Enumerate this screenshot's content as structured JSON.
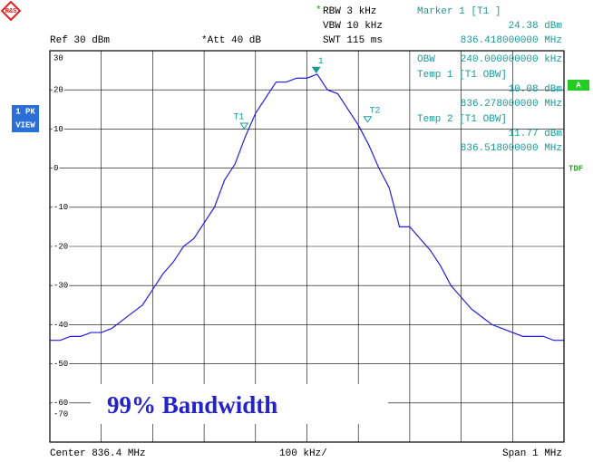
{
  "header": {
    "rbw": "RBW 3 kHz",
    "vbw": "VBW 10 kHz",
    "swt": "SWT 115 ms",
    "star1": "*",
    "marker_title": "Marker 1 [T1 ]",
    "marker_level": "24.38 dBm",
    "marker_freq": "836.418000000 MHz",
    "ref": "Ref 30 dBm",
    "att": "*Att 40 dB"
  },
  "side": {
    "trace_mode_1": "1 PK",
    "trace_mode_2": "VIEW",
    "a": "A",
    "tdf": "TDF"
  },
  "readout": {
    "obw_label": "OBW",
    "obw_value": "240.000000000 kHz",
    "temp1": "Temp 1 [T1 OBW]",
    "temp1_level": "10.08 dBm",
    "temp1_freq": "836.278000000 MHz",
    "temp2": "Temp 2 [T1 OBW]",
    "temp2_level": "11.77 dBm",
    "temp2_freq": "836.518000000 MHz"
  },
  "footer": {
    "center": "Center 836.4 MHz",
    "div": "100 kHz/",
    "span": "Span 1 MHz"
  },
  "annotation": "99% Bandwidth",
  "chart_data": {
    "type": "line",
    "color": "#1f1fe6",
    "grid": true,
    "xlim": [
      835.9,
      836.9
    ],
    "xticks": [
      835.9,
      836.0,
      836.1,
      836.2,
      836.3,
      836.4,
      836.5,
      836.6,
      836.7,
      836.8,
      836.9
    ],
    "ylim": [
      -70,
      30
    ],
    "yticks": [
      30,
      20,
      10,
      0,
      -10,
      -20,
      -30,
      -40,
      -50,
      -60,
      -70
    ],
    "x": [
      835.9,
      835.92,
      835.94,
      835.96,
      835.98,
      836.0,
      836.02,
      836.04,
      836.06,
      836.08,
      836.1,
      836.12,
      836.14,
      836.16,
      836.18,
      836.2,
      836.22,
      836.24,
      836.26,
      836.28,
      836.3,
      836.32,
      836.34,
      836.36,
      836.38,
      836.4,
      836.42,
      836.44,
      836.46,
      836.48,
      836.5,
      836.52,
      836.54,
      836.56,
      836.58,
      836.6,
      836.62,
      836.64,
      836.66,
      836.68,
      836.7,
      836.72,
      836.74,
      836.76,
      836.78,
      836.8,
      836.82,
      836.84,
      836.86,
      836.88,
      836.9
    ],
    "values": [
      -44,
      -44,
      -43,
      -43,
      -42,
      -42,
      -41,
      -39,
      -37,
      -35,
      -31,
      -27,
      -24,
      -20,
      -18,
      -14,
      -10,
      -3,
      1,
      8,
      14,
      18,
      22,
      22,
      23,
      23,
      24,
      20,
      19,
      15,
      11,
      6,
      0,
      -5,
      -15,
      -15,
      -18,
      -21,
      -25,
      -30,
      -33,
      -36,
      -38,
      -40,
      -41,
      -42,
      -43,
      -43,
      -43,
      -44,
      -44
    ],
    "markers": [
      {
        "label": "1",
        "x": 836.418,
        "value": 24.38
      },
      {
        "label": "T1",
        "x": 836.278,
        "value": 10.08
      },
      {
        "label": "T2",
        "x": 836.518,
        "value": 11.77
      }
    ]
  }
}
